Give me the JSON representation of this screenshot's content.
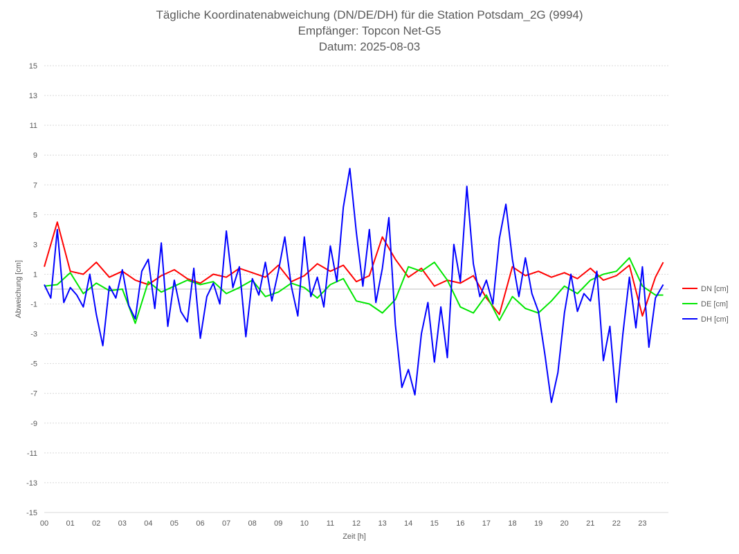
{
  "chart_data": {
    "type": "line",
    "title": [
      "Tägliche Koordinatenabweichung (DN/DE/DH) für die Station Potsdam_2G (9994)",
      "Empfänger: Topcon Net-G5",
      "Datum: 2025-08-03"
    ],
    "xlabel": "Zeit [h]",
    "ylabel": "Abweichung [cm]",
    "xlim": [
      0,
      24
    ],
    "ylim": [
      -15,
      15
    ],
    "x_ticks": [
      "00",
      "01",
      "02",
      "03",
      "04",
      "05",
      "06",
      "07",
      "08",
      "09",
      "10",
      "11",
      "12",
      "13",
      "14",
      "15",
      "16",
      "17",
      "18",
      "19",
      "20",
      "21",
      "22",
      "23"
    ],
    "y_ticks": [
      15,
      13,
      11,
      9,
      7,
      5,
      3,
      1,
      -1,
      -3,
      -5,
      -7,
      -9,
      -11,
      -13,
      -15
    ],
    "grid": true,
    "legend_position": "right",
    "series": [
      {
        "name": "DN [cm]",
        "color": "#ff0000",
        "x": [
          0,
          0.5,
          1,
          1.5,
          2,
          2.5,
          3,
          3.5,
          4,
          4.5,
          5,
          5.5,
          6,
          6.5,
          7,
          7.5,
          8,
          8.5,
          9,
          9.5,
          10,
          10.5,
          11,
          11.5,
          12,
          12.5,
          13,
          13.5,
          14,
          14.5,
          15,
          15.5,
          16,
          16.5,
          17,
          17.5,
          18,
          18.5,
          19,
          19.5,
          20,
          20.5,
          21,
          21.5,
          22,
          22.5,
          23,
          23.5,
          23.8
        ],
        "values": [
          1.5,
          4.5,
          1.2,
          1.0,
          1.8,
          0.8,
          1.2,
          0.6,
          0.3,
          0.9,
          1.3,
          0.7,
          0.4,
          1.0,
          0.8,
          1.4,
          1.1,
          0.8,
          1.6,
          0.5,
          0.9,
          1.7,
          1.2,
          1.6,
          0.5,
          0.9,
          3.5,
          2.0,
          0.8,
          1.4,
          0.2,
          0.6,
          0.4,
          0.9,
          -0.6,
          -1.7,
          1.5,
          0.9,
          1.2,
          0.8,
          1.1,
          0.7,
          1.4,
          0.6,
          0.9,
          1.6,
          -1.8,
          0.8,
          1.8
        ]
      },
      {
        "name": "DE [cm]",
        "color": "#00e600",
        "x": [
          0,
          0.5,
          1,
          1.5,
          2,
          2.5,
          3,
          3.5,
          4,
          4.5,
          5,
          5.5,
          6,
          6.5,
          7,
          7.5,
          8,
          8.5,
          9,
          9.5,
          10,
          10.5,
          11,
          11.5,
          12,
          12.5,
          13,
          13.5,
          14,
          14.5,
          15,
          15.5,
          16,
          16.5,
          17,
          17.5,
          18,
          18.5,
          19,
          19.5,
          20,
          20.5,
          21,
          21.5,
          22,
          22.5,
          23,
          23.5,
          23.8
        ],
        "values": [
          0.2,
          0.3,
          1.1,
          -0.3,
          0.4,
          -0.1,
          0.0,
          -2.3,
          0.5,
          -0.2,
          0.2,
          0.6,
          0.3,
          0.5,
          -0.3,
          0.1,
          0.6,
          -0.5,
          -0.2,
          0.4,
          0.1,
          -0.6,
          0.3,
          0.7,
          -0.8,
          -1.0,
          -1.6,
          -0.7,
          1.5,
          1.2,
          1.8,
          0.6,
          -1.2,
          -1.6,
          -0.4,
          -2.1,
          -0.5,
          -1.3,
          -1.6,
          -0.8,
          0.2,
          -0.3,
          0.6,
          1.0,
          1.2,
          2.1,
          0.2,
          -0.4,
          -0.4
        ]
      },
      {
        "name": "DH [cm]",
        "color": "#0000ff",
        "x": [
          0,
          0.25,
          0.5,
          0.75,
          1,
          1.25,
          1.5,
          1.75,
          2,
          2.25,
          2.5,
          2.75,
          3,
          3.25,
          3.5,
          3.75,
          4,
          4.25,
          4.5,
          4.75,
          5,
          5.25,
          5.5,
          5.75,
          6,
          6.25,
          6.5,
          6.75,
          7,
          7.25,
          7.5,
          7.75,
          8,
          8.25,
          8.5,
          8.75,
          9,
          9.25,
          9.5,
          9.75,
          10,
          10.25,
          10.5,
          10.75,
          11,
          11.25,
          11.5,
          11.75,
          12,
          12.25,
          12.5,
          12.75,
          13,
          13.25,
          13.5,
          13.75,
          14,
          14.25,
          14.5,
          14.75,
          15,
          15.25,
          15.5,
          15.75,
          16,
          16.25,
          16.5,
          16.75,
          17,
          17.25,
          17.5,
          17.75,
          18,
          18.25,
          18.5,
          18.75,
          19,
          19.25,
          19.5,
          19.75,
          20,
          20.25,
          20.5,
          20.75,
          21,
          21.25,
          21.5,
          21.75,
          22,
          22.25,
          22.5,
          22.75,
          23,
          23.25,
          23.5,
          23.8
        ],
        "values": [
          0.3,
          -0.6,
          4.0,
          -0.9,
          0.1,
          -0.4,
          -1.2,
          1.0,
          -1.7,
          -3.8,
          0.2,
          -0.6,
          1.3,
          -1.1,
          -2.0,
          1.2,
          2.0,
          -1.3,
          3.1,
          -2.5,
          0.6,
          -1.5,
          -2.2,
          1.4,
          -3.3,
          -0.5,
          0.4,
          -1.0,
          3.9,
          0.1,
          1.5,
          -3.2,
          0.7,
          -0.4,
          1.8,
          -0.8,
          1.2,
          3.5,
          0.2,
          -1.8,
          3.5,
          -0.5,
          0.8,
          -1.2,
          2.9,
          0.5,
          5.5,
          8.1,
          3.8,
          0.2,
          4.0,
          -0.9,
          1.4,
          4.8,
          -2.4,
          -6.6,
          -5.4,
          -7.1,
          -3.0,
          -0.9,
          -4.9,
          -1.2,
          -4.6,
          3.0,
          0.5,
          6.9,
          1.7,
          -0.5,
          0.6,
          -1.0,
          3.4,
          5.7,
          2.0,
          -0.5,
          2.1,
          -0.3,
          -1.5,
          -4.4,
          -7.6,
          -5.6,
          -1.6,
          1.0,
          -1.5,
          -0.3,
          -0.8,
          1.2,
          -4.8,
          -2.5,
          -7.6,
          -3.0,
          0.8,
          -2.6,
          1.5,
          -3.9,
          -0.6,
          0.3
        ]
      }
    ]
  }
}
